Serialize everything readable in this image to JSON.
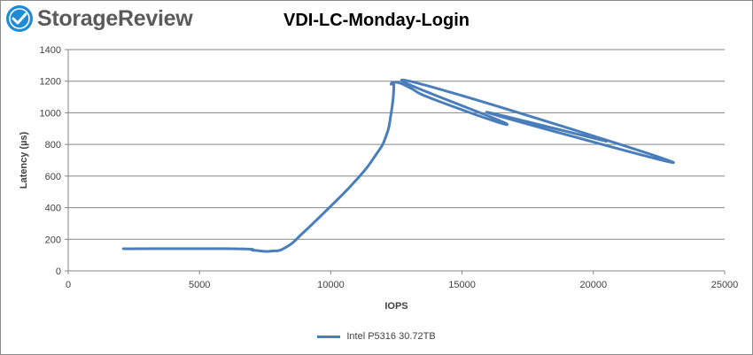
{
  "brand": {
    "name": "StorageReview",
    "logo_icon": "storagereview-logo-icon"
  },
  "colors": {
    "series": "#4a7ebb",
    "grid": "#858585",
    "axis": "#858585",
    "logo_blue": "#1f8ad6"
  },
  "chart_data": {
    "type": "line",
    "title": "VDI-LC-Monday-Login",
    "xlabel": "IOPS",
    "ylabel": "Latency (µs)",
    "xlim": [
      0,
      25000
    ],
    "ylim": [
      0,
      1400
    ],
    "xticks": [
      0,
      5000,
      10000,
      15000,
      20000,
      25000
    ],
    "yticks": [
      0,
      200,
      400,
      600,
      800,
      1000,
      1200,
      1400
    ],
    "grid": "horizontal",
    "legend": "bottom",
    "series": [
      {
        "name": "Intel P5316 30.72TB",
        "x": [
          2100,
          6300,
          7100,
          7700,
          8300,
          9000,
          10000,
          11000,
          11700,
          12100,
          12300,
          12400,
          12350,
          12300,
          12400,
          12600,
          13000,
          14000,
          16700,
          13000,
          23000,
          16000,
          20500
        ],
        "y": [
          140,
          140,
          130,
          125,
          150,
          250,
          410,
          580,
          730,
          850,
          1000,
          1150,
          1190,
          1180,
          1190,
          1190,
          1160,
          1080,
          930,
          1200,
          690,
          1000,
          820
        ]
      }
    ]
  }
}
